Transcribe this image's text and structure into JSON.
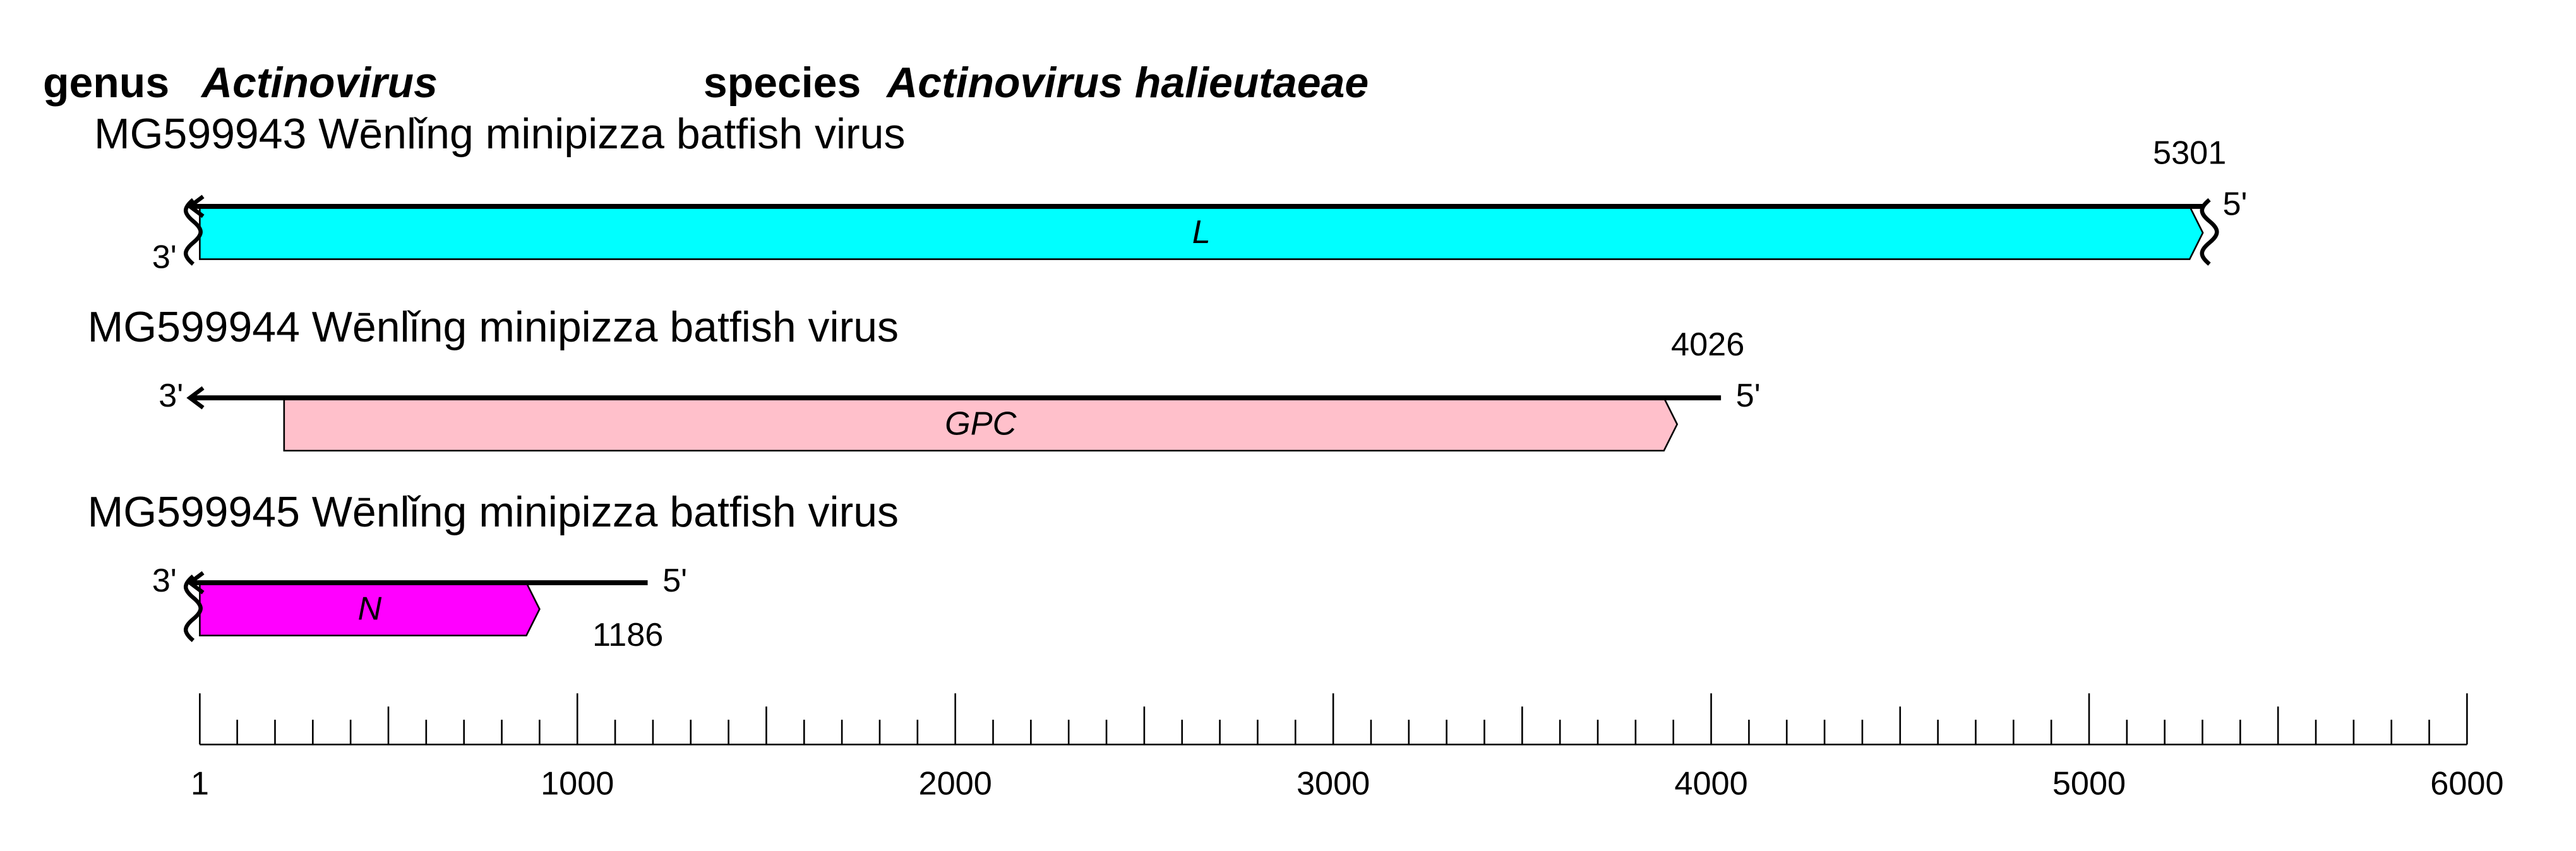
{
  "header": {
    "genus_label": "genus",
    "genus": "Actinovirus",
    "species_label": "species",
    "species": "Actinovirus halieutaeae"
  },
  "segments": [
    {
      "label": "MG599943 Wēnlǐng minipizza batfish virus",
      "length": 5301,
      "three_prime": "3'",
      "five_prime": "5'",
      "partial_3": true,
      "partial_5": true,
      "gene": {
        "name": "L",
        "start": 1,
        "end": 5301,
        "color": "#00ffff"
      }
    },
    {
      "label": "MG599944 Wēnlǐng minipizza batfish virus",
      "length": 4026,
      "three_prime": "3'",
      "five_prime": "5'",
      "partial_3": false,
      "partial_5": false,
      "gene": {
        "name": "GPC",
        "start": 224,
        "end": 3910,
        "color": "#ffc0cb"
      }
    },
    {
      "label": "MG599945 Wēnlǐng minipizza batfish virus",
      "length": 1186,
      "three_prime": "3'",
      "five_prime": "5'",
      "partial_3": true,
      "partial_5": false,
      "gene": {
        "name": "N",
        "start": 1,
        "end": 900,
        "color": "#ff00ff"
      }
    }
  ],
  "scale": {
    "xlim": [
      1,
      6000
    ],
    "major_ticks": [
      1,
      1000,
      2000,
      3000,
      4000,
      5000,
      6000
    ],
    "mid_ticks": [
      500,
      1500,
      2500,
      3500,
      4500,
      5500
    ],
    "minor_ticks": [
      100,
      200,
      300,
      400,
      600,
      700,
      800,
      900,
      1100,
      1200,
      1300,
      1400,
      1600,
      1700,
      1800,
      1900,
      2100,
      2200,
      2300,
      2400,
      2600,
      2700,
      2800,
      2900,
      3100,
      3200,
      3300,
      3400,
      3600,
      3700,
      3800,
      3900,
      4100,
      4200,
      4300,
      4400,
      4600,
      4700,
      4800,
      4900,
      5100,
      5200,
      5300,
      5400,
      5600,
      5700,
      5800,
      5900
    ]
  }
}
